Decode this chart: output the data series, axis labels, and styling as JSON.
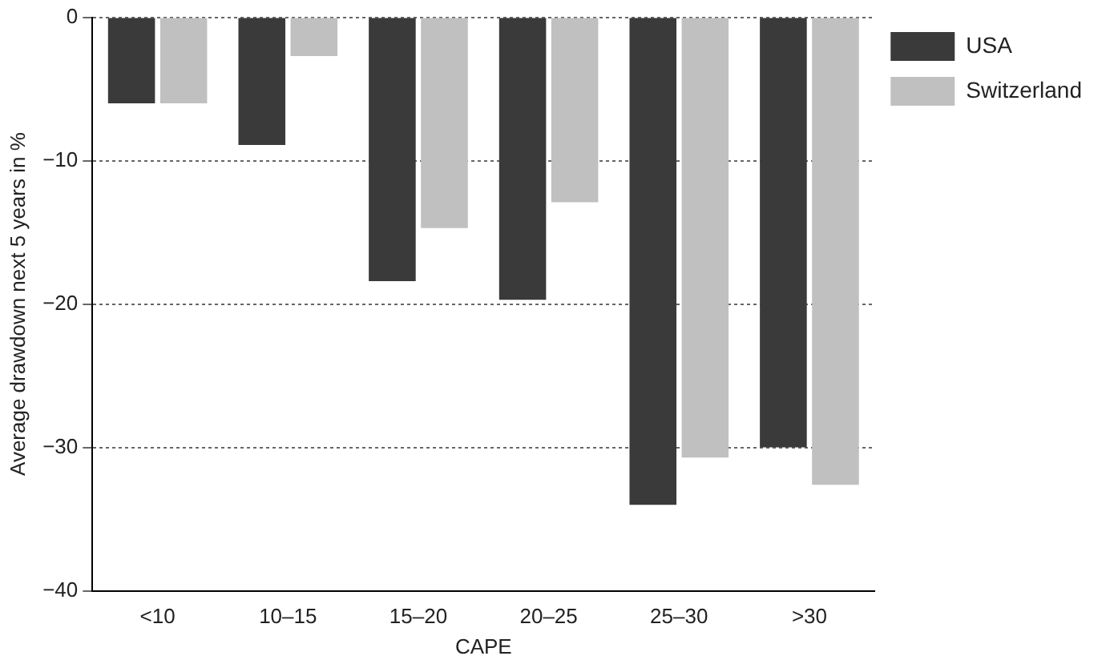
{
  "chart_data": {
    "type": "bar",
    "xlabel": "CAPE",
    "ylabel": "Average drawdown next 5 years in %",
    "categories": [
      "<10",
      "10–15",
      "15–20",
      "20–25",
      "25–30",
      ">30"
    ],
    "series": [
      {
        "name": "USA",
        "color": "#3a3a3a",
        "values": [
          -6.0,
          -8.9,
          -18.4,
          -19.7,
          -34.0,
          -30.0
        ]
      },
      {
        "name": "Switzerland",
        "color": "#c0c0c0",
        "values": [
          -6.0,
          -2.7,
          -14.7,
          -12.9,
          -30.7,
          -32.6
        ]
      }
    ],
    "ylim": [
      -40,
      0
    ],
    "yticks": [
      -40,
      -30,
      -20,
      -10,
      0
    ],
    "grid": "y",
    "legend": "right"
  }
}
